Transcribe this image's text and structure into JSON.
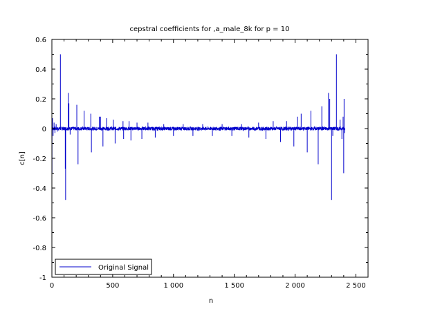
{
  "chart_data": {
    "type": "line",
    "title": "cepstral coefficients for ,a_male_8k for p = 10",
    "xlabel": "n",
    "ylabel": "c[n]",
    "xlim": [
      0,
      2600
    ],
    "ylim": [
      -1,
      0.6
    ],
    "x_ticks": [
      0,
      500,
      1000,
      1500,
      2000,
      2500
    ],
    "x_tick_labels": [
      "0",
      "500",
      "1 000",
      "1 500",
      "2 000",
      "2 500"
    ],
    "y_ticks": [
      -1,
      -0.8,
      -0.6,
      -0.4,
      -0.2,
      0,
      0.2,
      0.4,
      0.6
    ],
    "y_tick_labels": [
      "-1",
      "-0.8",
      "-0.6",
      "-0.4",
      "-0.2",
      "0",
      "0.2",
      "0.4",
      "0.6"
    ],
    "grid": false,
    "legend_position": "bottom-left",
    "series": [
      {
        "name": "Original Signal",
        "color": "#0000cc",
        "x_start": 0,
        "x_end": 2410,
        "baseline": 0,
        "noise_amplitude": 0.012,
        "spikes": [
          {
            "x": 1,
            "y": -0.3
          },
          {
            "x": 5,
            "y": 0.07
          },
          {
            "x": 10,
            "y": -0.05
          },
          {
            "x": 18,
            "y": 0.04
          },
          {
            "x": 25,
            "y": -0.03
          },
          {
            "x": 35,
            "y": 0.03
          },
          {
            "x": 45,
            "y": -0.02
          },
          {
            "x": 70,
            "y": 0.5
          },
          {
            "x": 110,
            "y": -0.27
          },
          {
            "x": 113,
            "y": -0.48
          },
          {
            "x": 135,
            "y": 0.24
          },
          {
            "x": 140,
            "y": 0.17
          },
          {
            "x": 150,
            "y": -0.04
          },
          {
            "x": 205,
            "y": 0.16
          },
          {
            "x": 215,
            "y": -0.24
          },
          {
            "x": 265,
            "y": 0.12
          },
          {
            "x": 320,
            "y": 0.1
          },
          {
            "x": 325,
            "y": -0.16
          },
          {
            "x": 390,
            "y": 0.08
          },
          {
            "x": 400,
            "y": 0.08
          },
          {
            "x": 420,
            "y": -0.12
          },
          {
            "x": 450,
            "y": 0.07
          },
          {
            "x": 505,
            "y": 0.06
          },
          {
            "x": 520,
            "y": -0.1
          },
          {
            "x": 585,
            "y": 0.05
          },
          {
            "x": 590,
            "y": -0.07
          },
          {
            "x": 635,
            "y": 0.05
          },
          {
            "x": 650,
            "y": -0.08
          },
          {
            "x": 700,
            "y": 0.04
          },
          {
            "x": 740,
            "y": -0.07
          },
          {
            "x": 790,
            "y": 0.04
          },
          {
            "x": 850,
            "y": -0.06
          },
          {
            "x": 920,
            "y": 0.03
          },
          {
            "x": 1000,
            "y": -0.05
          },
          {
            "x": 1080,
            "y": 0.03
          },
          {
            "x": 1160,
            "y": -0.05
          },
          {
            "x": 1240,
            "y": 0.03
          },
          {
            "x": 1320,
            "y": -0.05
          },
          {
            "x": 1400,
            "y": 0.03
          },
          {
            "x": 1480,
            "y": -0.05
          },
          {
            "x": 1560,
            "y": 0.03
          },
          {
            "x": 1620,
            "y": -0.06
          },
          {
            "x": 1700,
            "y": 0.04
          },
          {
            "x": 1760,
            "y": -0.07
          },
          {
            "x": 1820,
            "y": 0.05
          },
          {
            "x": 1880,
            "y": -0.09
          },
          {
            "x": 1930,
            "y": 0.05
          },
          {
            "x": 1990,
            "y": -0.12
          },
          {
            "x": 2020,
            "y": 0.08
          },
          {
            "x": 2050,
            "y": 0.1
          },
          {
            "x": 2100,
            "y": -0.16
          },
          {
            "x": 2130,
            "y": 0.12
          },
          {
            "x": 2190,
            "y": -0.24
          },
          {
            "x": 2220,
            "y": 0.15
          },
          {
            "x": 2275,
            "y": 0.24
          },
          {
            "x": 2285,
            "y": 0.2
          },
          {
            "x": 2300,
            "y": -0.48
          },
          {
            "x": 2310,
            "y": -0.05
          },
          {
            "x": 2340,
            "y": 0.5
          },
          {
            "x": 2370,
            "y": 0.06
          },
          {
            "x": 2385,
            "y": -0.07
          },
          {
            "x": 2395,
            "y": 0.08
          },
          {
            "x": 2400,
            "y": -0.3
          },
          {
            "x": 2403,
            "y": 0.2
          },
          {
            "x": 2406,
            "y": -0.03
          }
        ]
      }
    ]
  }
}
